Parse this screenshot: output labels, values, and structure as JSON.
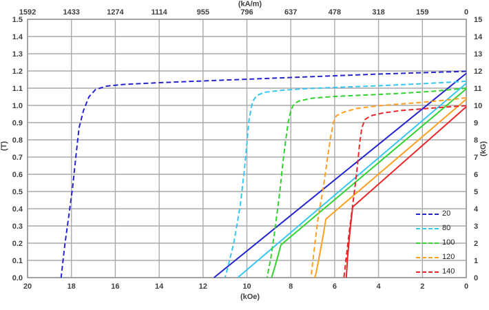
{
  "chart_data": {
    "type": "line",
    "title": "",
    "description": "Permanent magnet demagnetization curves: dashed intrinsic J-H curves and solid normal B-H curves at five temperatures",
    "grid": true,
    "axes": {
      "top": {
        "title": "(kA/m)",
        "ticks": [
          "1592",
          "1433",
          "1274",
          "1114",
          "955",
          "796",
          "637",
          "478",
          "318",
          "159",
          "0"
        ]
      },
      "bottom": {
        "title": "(kOe)",
        "ticks": [
          "20",
          "18",
          "16",
          "14",
          "12",
          "10",
          "8",
          "6",
          "4",
          "2",
          "0"
        ],
        "min": 0,
        "max": 20,
        "direction": "values-decrease-to-right"
      },
      "left": {
        "title": "(T)",
        "ticks": [
          "1.5",
          "1.4",
          "1.3",
          "1.2",
          "1.1",
          "1.0",
          "0.9",
          "0.8",
          "0.7",
          "0.6",
          "0.5",
          "0.4",
          "0.3",
          "0.2",
          "0.1",
          "0.0"
        ],
        "min": 0,
        "max": 1.5
      },
      "right": {
        "title": "(kG)",
        "ticks": [
          "15",
          "14",
          "13",
          "12",
          "11",
          "10",
          "9",
          "8",
          "7",
          "6",
          "5",
          "4",
          "3",
          "2",
          "1",
          "0"
        ],
        "min": 0,
        "max": 15
      }
    },
    "legend": {
      "position": "inside-right",
      "style": "dashed-samples"
    },
    "series": [
      {
        "name": "20",
        "color": "#2424cf",
        "intrinsic_J_H_dashed": [
          [
            0,
            1.198
          ],
          [
            2,
            1.19
          ],
          [
            4,
            1.182
          ],
          [
            6,
            1.172
          ],
          [
            8,
            1.162
          ],
          [
            10,
            1.152
          ],
          [
            12,
            1.142
          ],
          [
            14,
            1.132
          ],
          [
            15.6,
            1.122
          ],
          [
            16.4,
            1.112
          ],
          [
            16.9,
            1.092
          ],
          [
            17.2,
            1.05
          ],
          [
            17.45,
            0.97
          ],
          [
            17.65,
            0.87
          ],
          [
            17.8,
            0.7
          ],
          [
            17.95,
            0.52
          ],
          [
            18.15,
            0.33
          ],
          [
            18.3,
            0.19
          ],
          [
            18.47,
            0
          ]
        ],
        "normal_B_H_solid": [
          [
            0,
            1.186
          ],
          [
            11.5,
            0
          ]
        ]
      },
      {
        "name": "80",
        "color": "#35c6f2",
        "intrinsic_J_H_dashed": [
          [
            0,
            1.14
          ],
          [
            2,
            1.126
          ],
          [
            4,
            1.114
          ],
          [
            6,
            1.104
          ],
          [
            7.2,
            1.098
          ],
          [
            8.4,
            1.088
          ],
          [
            9.2,
            1.076
          ],
          [
            9.55,
            1.058
          ],
          [
            9.75,
            1.02
          ],
          [
            9.9,
            0.92
          ],
          [
            10.0,
            0.78
          ],
          [
            10.12,
            0.62
          ],
          [
            10.3,
            0.42
          ],
          [
            10.6,
            0.2
          ],
          [
            10.85,
            0.07
          ],
          [
            11.0,
            0
          ]
        ],
        "normal_B_H_solid": [
          [
            0,
            1.128
          ],
          [
            10.42,
            0
          ]
        ]
      },
      {
        "name": "100",
        "color": "#2ed32e",
        "intrinsic_J_H_dashed": [
          [
            0,
            1.1
          ],
          [
            1.5,
            1.082
          ],
          [
            3,
            1.07
          ],
          [
            4.5,
            1.061
          ],
          [
            6,
            1.052
          ],
          [
            7,
            1.042
          ],
          [
            7.6,
            1.027
          ],
          [
            7.85,
            1.01
          ],
          [
            8.0,
            0.97
          ],
          [
            8.12,
            0.9
          ],
          [
            8.25,
            0.78
          ],
          [
            8.35,
            0.68
          ],
          [
            8.5,
            0.5
          ],
          [
            8.7,
            0.3
          ],
          [
            8.9,
            0.12
          ],
          [
            9.08,
            0
          ]
        ],
        "normal_B_H_solid": [
          [
            0,
            1.096
          ],
          [
            8.45,
            0.19
          ],
          [
            8.62,
            0.11
          ],
          [
            8.78,
            0.04
          ],
          [
            8.88,
            0
          ]
        ]
      },
      {
        "name": "120",
        "color": "#ff9e1f",
        "intrinsic_J_H_dashed": [
          [
            0,
            1.044
          ],
          [
            1,
            1.03
          ],
          [
            2,
            1.018
          ],
          [
            3,
            1.008
          ],
          [
            4,
            0.998
          ],
          [
            5,
            0.982
          ],
          [
            5.6,
            0.96
          ],
          [
            5.92,
            0.94
          ],
          [
            6.06,
            0.9
          ],
          [
            6.18,
            0.82
          ],
          [
            6.32,
            0.7
          ],
          [
            6.46,
            0.57
          ],
          [
            6.6,
            0.46
          ],
          [
            6.74,
            0.36
          ],
          [
            6.86,
            0.24
          ],
          [
            7.0,
            0.09
          ],
          [
            7.08,
            0
          ]
        ],
        "normal_B_H_solid": [
          [
            0,
            1.036
          ],
          [
            6.4,
            0.34
          ],
          [
            6.56,
            0.22
          ],
          [
            6.72,
            0.11
          ],
          [
            6.84,
            0.03
          ],
          [
            6.9,
            0
          ]
        ]
      },
      {
        "name": "140",
        "color": "#e92528",
        "intrinsic_J_H_dashed": [
          [
            0,
            0.998
          ],
          [
            1,
            0.99
          ],
          [
            2,
            0.98
          ],
          [
            3,
            0.97
          ],
          [
            3.8,
            0.956
          ],
          [
            4.35,
            0.94
          ],
          [
            4.62,
            0.918
          ],
          [
            4.76,
            0.87
          ],
          [
            4.86,
            0.78
          ],
          [
            4.96,
            0.65
          ],
          [
            5.08,
            0.52
          ],
          [
            5.2,
            0.4
          ],
          [
            5.33,
            0.27
          ],
          [
            5.46,
            0.13
          ],
          [
            5.58,
            0
          ]
        ],
        "normal_B_H_solid": [
          [
            0,
            0.992
          ],
          [
            5.18,
            0.41
          ],
          [
            5.31,
            0.26
          ],
          [
            5.41,
            0.12
          ],
          [
            5.47,
            0
          ]
        ]
      }
    ],
    "style": {
      "grid_color": "#a9a9a9",
      "border_color": "#8c8c8c",
      "label_color": "#3f3f3f",
      "line_width": 2,
      "dash_pattern": "7 4"
    }
  }
}
